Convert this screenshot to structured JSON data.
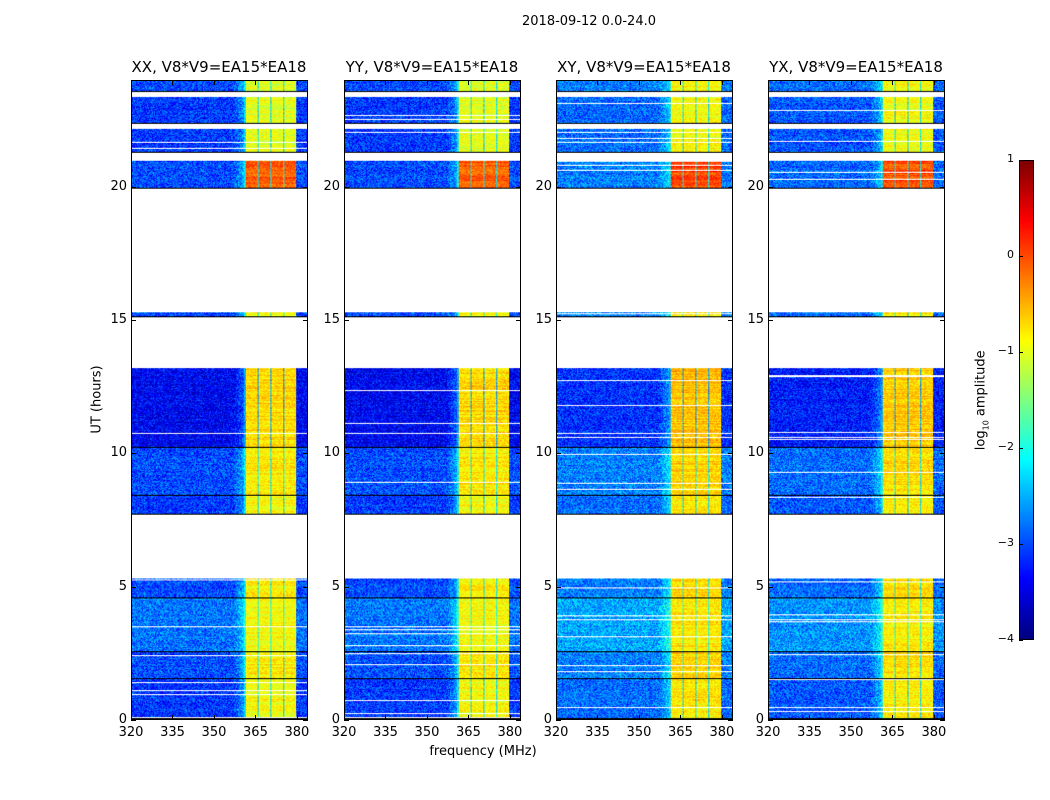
{
  "suptitle": "2018-09-12 0.0-24.0",
  "chart_data": {
    "type": "heatmap",
    "xlabel": "frequency (MHz)",
    "ylabel": "UT (hours)",
    "xlim": [
      320,
      384
    ],
    "ylim": [
      0,
      24
    ],
    "xticks": [
      "320",
      "335",
      "350",
      "365",
      "380"
    ],
    "xtick_values": [
      320,
      335,
      350,
      365,
      380
    ],
    "yticks": [
      "0",
      "5",
      "10",
      "15",
      "20"
    ],
    "ytick_values": [
      0,
      5,
      10,
      15,
      20
    ],
    "panels": [
      {
        "title": "XX, V8*V9=EA15*EA18",
        "offset": 0
      },
      {
        "title": "YY, V8*V9=EA15*EA18",
        "offset": 0
      },
      {
        "title": "XY, V8*V9=EA15*EA18",
        "offset": 0.25
      },
      {
        "title": "YX, V8*V9=EA15*EA18",
        "offset": 0.15
      }
    ],
    "rfi_band_mhz": [
      361,
      380
    ],
    "data_segments_hours": [
      {
        "start": 0.0,
        "end": 1.5,
        "base": -3.1,
        "rfi": -0.9
      },
      {
        "start": 1.5,
        "end": 2.5,
        "base": -3.0,
        "rfi": -0.8
      },
      {
        "start": 2.5,
        "end": 4.55,
        "base": -2.8,
        "rfi": -0.9
      },
      {
        "start": 4.55,
        "end": 5.3,
        "base": -3.0,
        "rfi": -0.8
      },
      {
        "start": 7.7,
        "end": 8.4,
        "base": -3.1,
        "rfi": -0.9
      },
      {
        "start": 8.4,
        "end": 10.2,
        "base": -3.0,
        "rfi": -0.8
      },
      {
        "start": 10.2,
        "end": 13.2,
        "base": -3.4,
        "rfi": -0.7
      },
      {
        "start": 15.1,
        "end": 15.3,
        "base": -3.0,
        "rfi": -0.9
      },
      {
        "start": 19.95,
        "end": 21.0,
        "base": -3.0,
        "rfi": -0.1
      },
      {
        "start": 21.3,
        "end": 22.2,
        "base": -3.1,
        "rfi": -1.0
      },
      {
        "start": 22.4,
        "end": 23.4,
        "base": -3.1,
        "rfi": -1.0
      },
      {
        "start": 23.6,
        "end": 24.0,
        "base": -3.0,
        "rfi": -1.0
      }
    ],
    "colorbar": {
      "label": "log10 amplitude",
      "label_main": "log",
      "label_sub": "10",
      "label_rest": " amplitude",
      "colormap": "jet",
      "range": [
        -4,
        1
      ],
      "ticks": [
        "1",
        "0",
        "−1",
        "−2",
        "−3",
        "−4"
      ],
      "tick_values": [
        1,
        0,
        -1,
        -2,
        -3,
        -4
      ]
    }
  }
}
